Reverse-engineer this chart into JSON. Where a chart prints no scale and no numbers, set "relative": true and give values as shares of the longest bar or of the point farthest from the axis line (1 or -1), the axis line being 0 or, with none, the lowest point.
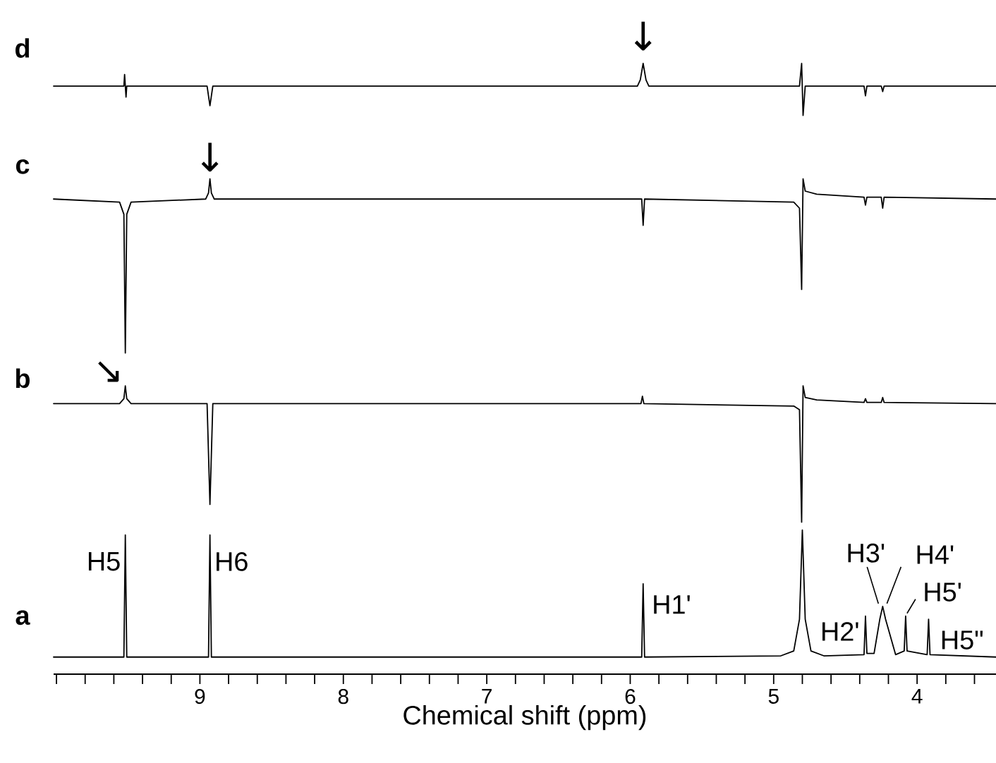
{
  "chart_data": {
    "type": "line",
    "xlabel": "Chemical shift (ppm)",
    "xlim": [
      10.02,
      3.45
    ],
    "relative": true,
    "xticks": [
      {
        "value": 10,
        "label": null
      },
      {
        "value": 9.8,
        "label": null
      },
      {
        "value": 9.6,
        "label": null
      },
      {
        "value": 9.4,
        "label": null
      },
      {
        "value": 9.2,
        "label": null
      },
      9,
      {
        "value": 8.8,
        "label": null
      },
      {
        "value": 8.6,
        "label": null
      },
      {
        "value": 8.4,
        "label": null
      },
      {
        "value": 8.2,
        "label": null
      },
      8,
      {
        "value": 7.8,
        "label": null
      },
      {
        "value": 7.6,
        "label": null
      },
      {
        "value": 7.4,
        "label": null
      },
      {
        "value": 7.2,
        "label": null
      },
      7,
      {
        "value": 6.8,
        "label": null
      },
      {
        "value": 6.6,
        "label": null
      },
      {
        "value": 6.4,
        "label": null
      },
      {
        "value": 6.2,
        "label": null
      },
      6,
      {
        "value": 5.8,
        "label": null
      },
      {
        "value": 5.6,
        "label": null
      },
      {
        "value": 5.4,
        "label": null
      },
      {
        "value": 5.2,
        "label": null
      },
      5,
      {
        "value": 4.8,
        "label": null
      },
      {
        "value": 4.6,
        "label": null
      },
      {
        "value": 4.4,
        "label": null
      },
      {
        "value": 4.2,
        "label": null
      },
      4,
      {
        "value": 3.8,
        "label": null
      },
      {
        "value": 3.6,
        "label": null
      }
    ],
    "annotations": [
      {
        "text": "H5",
        "x": 9.52,
        "y": 0.228
      },
      {
        "text": "H6",
        "x": 8.93,
        "y": 0.228
      },
      {
        "text": "H1'",
        "x": 5.91,
        "y": 0.148
      },
      {
        "text": "H2'",
        "x": 4.36,
        "y": 0.095
      },
      {
        "text": "H3'",
        "x": 4.26,
        "y": 0.09
      },
      {
        "text": "H4'",
        "x": 4.24,
        "y": 0.111
      },
      {
        "text": "H5'",
        "x": 4.08,
        "y": 0.095
      },
      {
        "text": "H5\"",
        "x": 3.92,
        "y": 0.09
      },
      {
        "text": "↘",
        "x": 9.52,
        "y": 0.472
      },
      {
        "text": "↓",
        "x": 8.93,
        "y": 0.811
      },
      {
        "text": "↓",
        "x": 5.91,
        "y": 1
      }
    ],
    "series": [
      {
        "name": "a",
        "color": "#000000",
        "x": [
          10.02,
          9.53,
          9.52,
          9.51,
          8.94,
          8.93,
          8.92,
          5.92,
          5.91,
          5.9,
          4.95,
          4.86,
          4.82,
          4.8,
          4.78,
          4.74,
          4.65,
          4.37,
          4.36,
          4.35,
          4.3,
          4.26,
          4.24,
          4.22,
          4.15,
          4.09,
          4.08,
          4.07,
          3.93,
          3.92,
          3.91,
          3.45
        ],
        "values": [
          0.028,
          0.028,
          0.228,
          0.028,
          0.028,
          0.228,
          0.028,
          0.028,
          0.148,
          0.028,
          0.03,
          0.038,
          0.09,
          0.236,
          0.09,
          0.038,
          0.03,
          0.032,
          0.095,
          0.034,
          0.034,
          0.09,
          0.111,
          0.09,
          0.032,
          0.038,
          0.095,
          0.038,
          0.032,
          0.09,
          0.032,
          0.028
        ]
      },
      {
        "name": "b",
        "color": "#000000",
        "x": [
          10.02,
          9.56,
          9.53,
          9.52,
          9.51,
          9.48,
          8.95,
          8.93,
          8.91,
          5.925,
          5.915,
          5.905,
          4.86,
          4.82,
          4.805,
          4.795,
          4.78,
          4.7,
          4.37,
          4.36,
          4.35,
          4.25,
          4.24,
          4.23,
          3.45
        ],
        "values": [
          0.443,
          0.443,
          0.451,
          0.472,
          0.451,
          0.443,
          0.443,
          0.278,
          0.443,
          0.443,
          0.455,
          0.443,
          0.439,
          0.433,
          0.249,
          0.472,
          0.453,
          0.449,
          0.445,
          0.451,
          0.445,
          0.445,
          0.453,
          0.445,
          0.443
        ]
      },
      {
        "name": "c",
        "color": "#000000",
        "x": [
          10.02,
          9.56,
          9.53,
          9.52,
          9.51,
          9.48,
          8.96,
          8.94,
          8.93,
          8.92,
          8.9,
          5.92,
          5.91,
          5.9,
          4.86,
          4.82,
          4.805,
          4.795,
          4.78,
          4.7,
          4.37,
          4.36,
          4.35,
          4.25,
          4.24,
          4.23,
          3.45
        ],
        "values": [
          0.778,
          0.773,
          0.753,
          0.526,
          0.753,
          0.773,
          0.778,
          0.788,
          0.811,
          0.788,
          0.778,
          0.778,
          0.735,
          0.778,
          0.773,
          0.763,
          0.63,
          0.811,
          0.791,
          0.786,
          0.781,
          0.768,
          0.781,
          0.781,
          0.763,
          0.781,
          0.778
        ]
      },
      {
        "name": "d",
        "color": "#000000",
        "x": [
          10.02,
          9.53,
          9.525,
          9.515,
          9.51,
          8.95,
          8.93,
          8.91,
          5.95,
          5.93,
          5.91,
          5.89,
          5.87,
          4.82,
          4.805,
          4.795,
          4.78,
          4.37,
          4.36,
          4.35,
          4.25,
          4.24,
          4.23,
          3.45
        ],
        "values": [
          0.963,
          0.963,
          0.982,
          0.945,
          0.963,
          0.963,
          0.931,
          0.963,
          0.963,
          0.973,
          1,
          0.973,
          0.963,
          0.963,
          1,
          0.915,
          0.963,
          0.963,
          0.947,
          0.963,
          0.963,
          0.954,
          0.963,
          0.963
        ]
      }
    ]
  }
}
